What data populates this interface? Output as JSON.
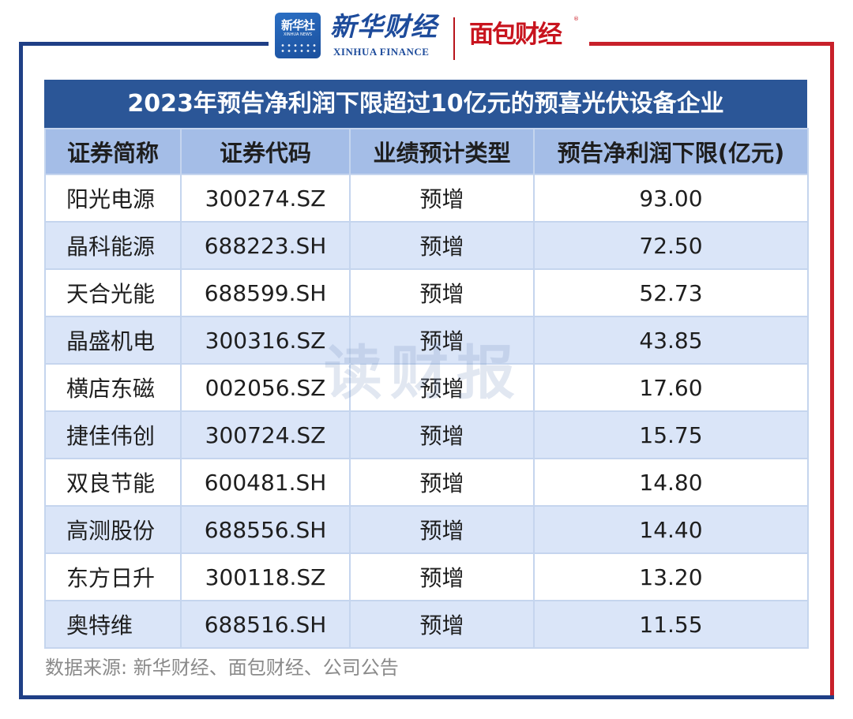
{
  "header": {
    "xinhua_badge_main": "新华社",
    "xinhua_badge_sub": "XINHUA NEWS",
    "xinhua_finance_cn": "新华财经",
    "xinhua_finance_en": "XINHUA FINANCE",
    "mianbao_logo": "面包财经",
    "reg_mark": "®"
  },
  "table": {
    "title": "2023年预告净利润下限超过10亿元的预喜光伏设备企业",
    "headers": [
      "证券简称",
      "证券代码",
      "业绩预计类型",
      "预告净利润下限(亿元)"
    ],
    "rows": [
      {
        "name": "阳光电源",
        "code": "300274.SZ",
        "type": "预增",
        "value": "93.00"
      },
      {
        "name": "晶科能源",
        "code": "688223.SH",
        "type": "预增",
        "value": "72.50"
      },
      {
        "name": "天合光能",
        "code": "688599.SH",
        "type": "预增",
        "value": "52.73"
      },
      {
        "name": "晶盛机电",
        "code": "300316.SZ",
        "type": "预增",
        "value": "43.85"
      },
      {
        "name": "横店东磁",
        "code": "002056.SZ",
        "type": "预增",
        "value": "17.60"
      },
      {
        "name": "捷佳伟创",
        "code": "300724.SZ",
        "type": "预增",
        "value": "15.75"
      },
      {
        "name": "双良节能",
        "code": "600481.SH",
        "type": "预增",
        "value": "14.80"
      },
      {
        "name": "高测股份",
        "code": "688556.SH",
        "type": "预增",
        "value": "14.40"
      },
      {
        "name": "东方日升",
        "code": "300118.SZ",
        "type": "预增",
        "value": "13.20"
      },
      {
        "name": "奥特维",
        "code": "688516.SH",
        "type": "预增",
        "value": "11.55"
      }
    ]
  },
  "watermark": "读财报",
  "source": "数据来源: 新华财经、面包财经、公司公告",
  "colors": {
    "frame_blue": "#1f3f86",
    "frame_red": "#c8202a",
    "title_bg": "#2b5697",
    "header_bg": "#a4bde7",
    "stripe_bg": "#dae5f8"
  }
}
